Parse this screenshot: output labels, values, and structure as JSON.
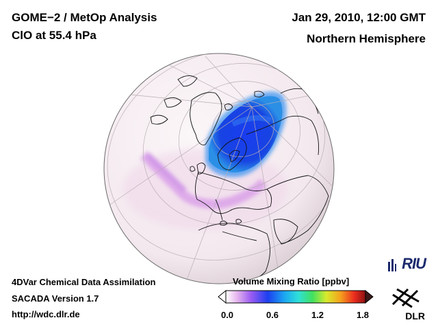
{
  "header": {
    "title": "GOME−2 / MetOp Analysis",
    "species": "ClO at 55.4 hPa",
    "datetime": "Jan 29, 2010, 12:00 GMT",
    "region": "Northern Hemisphere"
  },
  "footer": {
    "method": "4DVar Chemical Data Assimilation",
    "version": "SACADA Version 1.7",
    "url": "http://wdc.dlr.de"
  },
  "colorbar": {
    "title": "Volume Mixing Ratio [ppbv]",
    "ticks": [
      "0.0",
      "0.6",
      "1.2",
      "1.8"
    ],
    "range": [
      0.0,
      1.8
    ]
  },
  "logos": {
    "riu": "RIU",
    "dlr": "DLR"
  },
  "map": {
    "projection": "orthographic",
    "hemisphere": "Northern Hemisphere",
    "ocean_color": "#f6eef2",
    "activation_color_high": "#1437e8",
    "activation_color_low": "#e6b6ee"
  }
}
